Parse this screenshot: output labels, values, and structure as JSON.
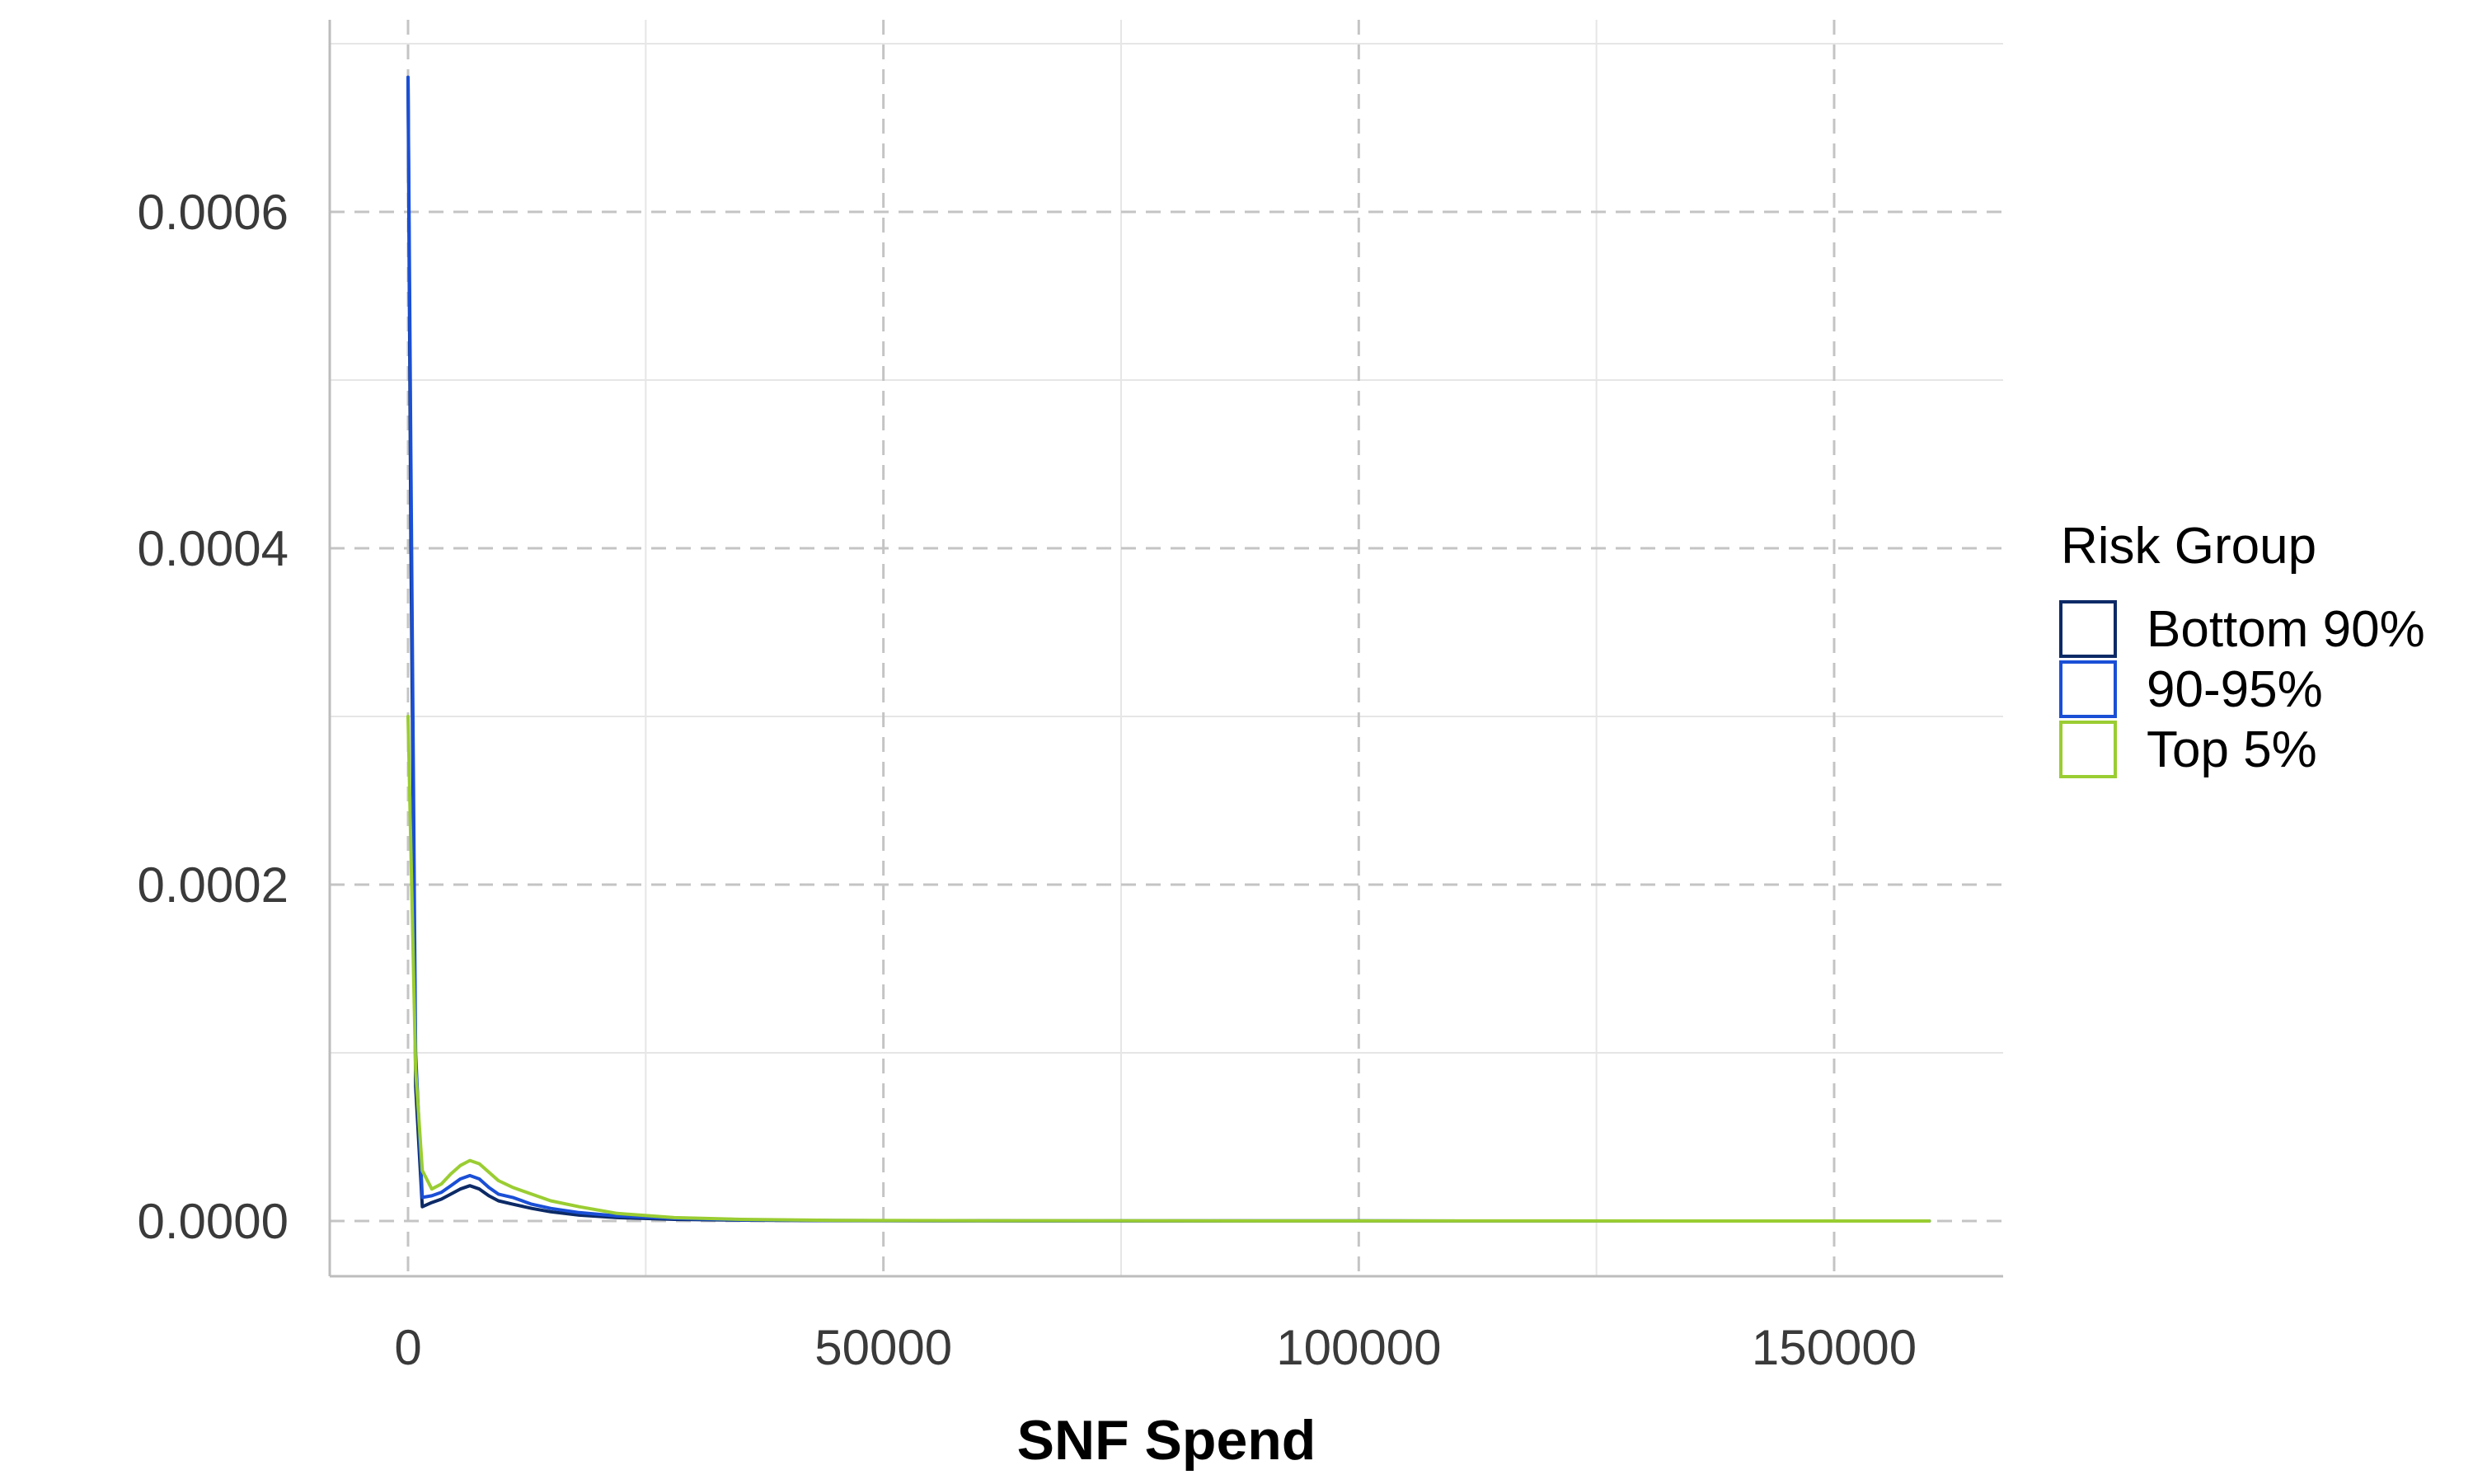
{
  "chart_data": {
    "type": "line",
    "subtype": "density",
    "title": "",
    "xlabel": "SNF Spend",
    "ylabel": "",
    "xlim": [
      -16500,
      335000
    ],
    "ylim": [
      -3.3e-05,
      0.00071
    ],
    "x_major_ticks": [
      0,
      50000,
      100000,
      150000
    ],
    "x_minor_ticks": [
      25000,
      75000,
      125000
    ],
    "y_major_ticks": [
      0.0,
      0.0002,
      0.0004,
      0.0006
    ],
    "y_minor_ticks": [
      0.0001,
      0.0003,
      0.0005,
      0.0007
    ],
    "x_tick_labels": [
      "0",
      "50000",
      "100000",
      "150000"
    ],
    "y_tick_labels": [
      "0.0000",
      "0.0002",
      "0.0004",
      "0.0006"
    ],
    "grid": true,
    "legend": {
      "title": "Risk Group",
      "position": "right"
    },
    "series": [
      {
        "name": "Bottom 90%",
        "color": "#0c2a66",
        "x": [
          0,
          300,
          800,
          1500,
          2500,
          3500,
          4500,
          5500,
          6500,
          7500,
          8500,
          9500,
          11000,
          13000,
          15000,
          18000,
          22000,
          28000,
          35000,
          45000,
          60000,
          80000,
          100000,
          120000,
          140000,
          160000
        ],
        "y": [
          0.00068,
          0.0004,
          8e-05,
          8.5e-06,
          1.1e-05,
          1.3e-05,
          1.6e-05,
          1.9e-05,
          2.1e-05,
          1.9e-05,
          1.5e-05,
          1.2e-05,
          1e-05,
          7.5e-06,
          5.5e-06,
          3.5e-06,
          2e-06,
          1e-06,
          5e-07,
          2e-07,
          1e-07,
          5e-08,
          3e-08,
          2e-08,
          1e-08,
          0.0
        ]
      },
      {
        "name": "90-95%",
        "color": "#1a4fd6",
        "x": [
          0,
          300,
          800,
          1500,
          2500,
          3500,
          4500,
          5500,
          6500,
          7500,
          8500,
          9500,
          11000,
          13000,
          15000,
          18000,
          22000,
          28000,
          35000,
          45000,
          60000,
          80000,
          100000,
          120000,
          140000,
          160000
        ],
        "y": [
          0.00068,
          0.00045,
          0.0001,
          1.4e-05,
          1.5e-05,
          1.7e-05,
          2.1e-05,
          2.5e-05,
          2.7e-05,
          2.5e-05,
          2e-05,
          1.6e-05,
          1.4e-05,
          1e-05,
          7.5e-06,
          5e-06,
          3e-06,
          1.5e-06,
          7e-07,
          3e-07,
          1e-07,
          5e-08,
          3e-08,
          2e-08,
          1e-08,
          0.0
        ]
      },
      {
        "name": "Top 5%",
        "color": "#9acd32",
        "x": [
          0,
          300,
          800,
          1500,
          2500,
          3500,
          4500,
          5500,
          6500,
          7500,
          8500,
          9500,
          11000,
          13000,
          15000,
          18000,
          22000,
          28000,
          35000,
          45000,
          60000,
          80000,
          100000,
          120000,
          140000,
          160000
        ],
        "y": [
          0.0003,
          0.00022,
          9e-05,
          3e-05,
          1.9e-05,
          2.2e-05,
          2.8e-05,
          3.3e-05,
          3.6e-05,
          3.4e-05,
          2.9e-05,
          2.4e-05,
          2e-05,
          1.6e-05,
          1.2e-05,
          8.5e-06,
          4.5e-06,
          2e-06,
          1e-06,
          4e-07,
          2e-07,
          1e-07,
          5e-08,
          3e-08,
          1e-08,
          0.0
        ]
      }
    ]
  }
}
